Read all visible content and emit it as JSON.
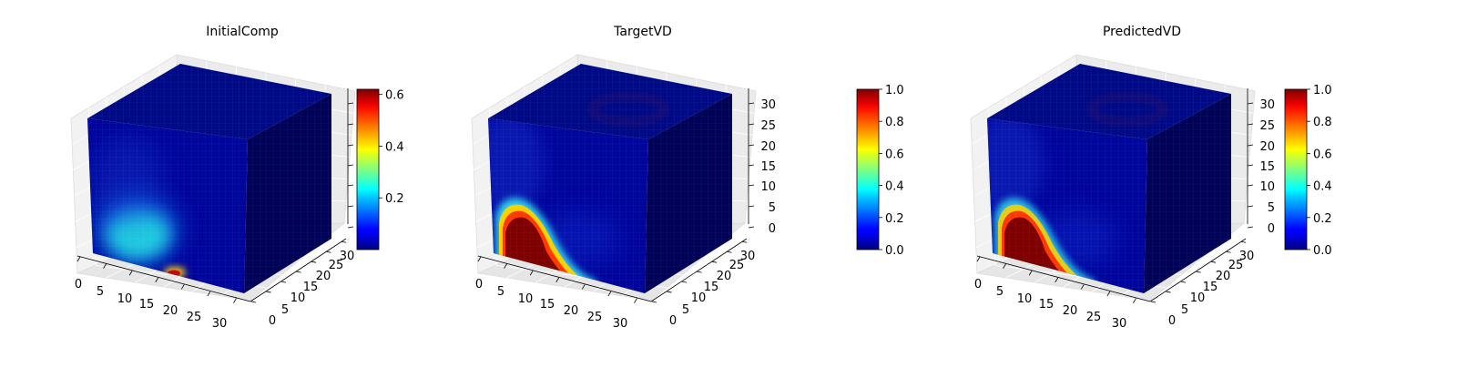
{
  "chart_data": [
    {
      "type": "voxel-3d",
      "title": "InitialComp",
      "axes": {
        "x_ticks": [
          "0",
          "5",
          "10",
          "15",
          "20",
          "25",
          "30"
        ],
        "y_ticks": [
          "0",
          "5",
          "10",
          "15",
          "20",
          "25",
          "30"
        ],
        "z_ticks": [
          "",
          "",
          "",
          "",
          "",
          "",
          ""
        ]
      },
      "grid": true,
      "colormap": "jet",
      "colorbar": {
        "min": 0.0,
        "max": 0.62,
        "ticks": [
          0.2,
          0.4,
          0.6
        ],
        "tick_labels": [
          "0.2",
          "0.4",
          "0.6"
        ]
      },
      "features": [
        {
          "face": "front",
          "shape": "diffuse blob",
          "center": [
            7,
            5
          ],
          "value": 0.35
        },
        {
          "face": "front",
          "shape": "small spot",
          "center": [
            21,
            1
          ],
          "value": 0.6
        }
      ]
    },
    {
      "type": "voxel-3d",
      "title": "TargetVD",
      "axes": {
        "x_ticks": [
          "0",
          "5",
          "10",
          "15",
          "20",
          "25",
          "30"
        ],
        "y_ticks": [
          "0",
          "5",
          "10",
          "15",
          "20",
          "25",
          "30"
        ],
        "z_ticks": [
          "0",
          "5",
          "10",
          "15",
          "20",
          "25",
          "30"
        ]
      },
      "grid": true,
      "colormap": "jet",
      "colorbar": {
        "min": 0.0,
        "max": 1.0,
        "ticks": [
          0.0,
          0.2,
          0.4,
          0.6,
          0.8,
          1.0
        ],
        "tick_labels": [
          "0.0",
          "0.2",
          "0.4",
          "0.6",
          "0.8",
          "1.0"
        ]
      },
      "features": [
        {
          "face": "front",
          "shape": "ellipse",
          "center": [
            10,
            6
          ],
          "value": 1.0
        }
      ]
    },
    {
      "type": "voxel-3d",
      "title": "PredictedVD",
      "axes": {
        "x_ticks": [
          "0",
          "5",
          "10",
          "15",
          "20",
          "25",
          "30"
        ],
        "y_ticks": [
          "0",
          "5",
          "10",
          "15",
          "20",
          "25",
          "30"
        ],
        "z_ticks": [
          "0",
          "5",
          "10",
          "15",
          "20",
          "25",
          "30"
        ]
      },
      "grid": true,
      "colormap": "jet",
      "colorbar": {
        "min": 0.0,
        "max": 1.0,
        "ticks": [
          0.0,
          0.2,
          0.4,
          0.6,
          0.8,
          1.0
        ],
        "tick_labels": [
          "0.0",
          "0.2",
          "0.4",
          "0.6",
          "0.8",
          "1.0"
        ]
      },
      "features": [
        {
          "face": "front",
          "shape": "ellipse",
          "center": [
            10,
            6
          ],
          "value": 1.0
        }
      ]
    }
  ]
}
